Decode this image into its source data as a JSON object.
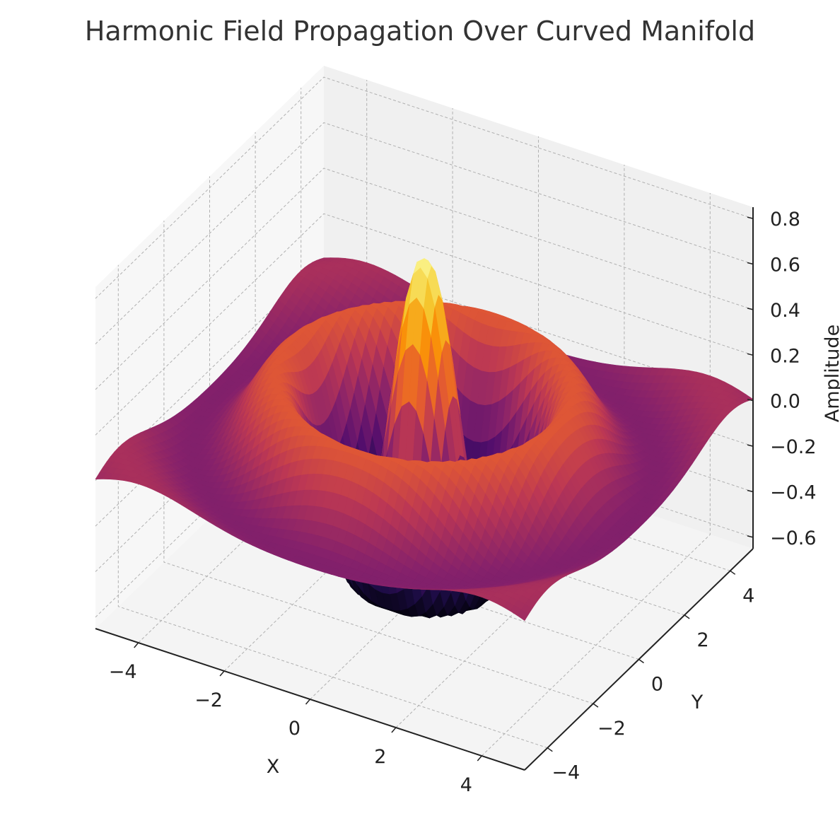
{
  "chart_data": {
    "type": "surface3d",
    "title": "Harmonic Field Propagation Over Curved Manifold",
    "xlabel": "X",
    "ylabel": "Y",
    "zlabel": "Amplitude",
    "xticks": [
      "−4",
      "−2",
      "0",
      "2",
      "4"
    ],
    "xtick_values": [
      -4,
      -2,
      0,
      2,
      4
    ],
    "yticks": [
      "−4",
      "−2",
      "0",
      "2",
      "4"
    ],
    "ytick_values": [
      -4,
      -2,
      0,
      2,
      4
    ],
    "zticks": [
      "−0.6",
      "−0.4",
      "−0.2",
      "0.0",
      "0.2",
      "0.4",
      "0.6",
      "0.8"
    ],
    "ztick_values": [
      -0.6,
      -0.4,
      -0.2,
      0.0,
      0.2,
      0.4,
      0.6,
      0.8
    ],
    "xlim": [
      -5,
      5
    ],
    "ylim": [
      -5,
      5
    ],
    "zlim": [
      -0.65,
      0.85
    ],
    "colormap": "inferno",
    "grid": true,
    "surface": "radially symmetric damped ripple, peak ≈ 0.8 at center, trough ≈ -0.6 ring near r ≈ 1.5, edges near 0"
  },
  "colors": {
    "pane": "#f2f2f2",
    "grid": "#b0b0b0",
    "axis": "#222222",
    "title": "#333333"
  }
}
